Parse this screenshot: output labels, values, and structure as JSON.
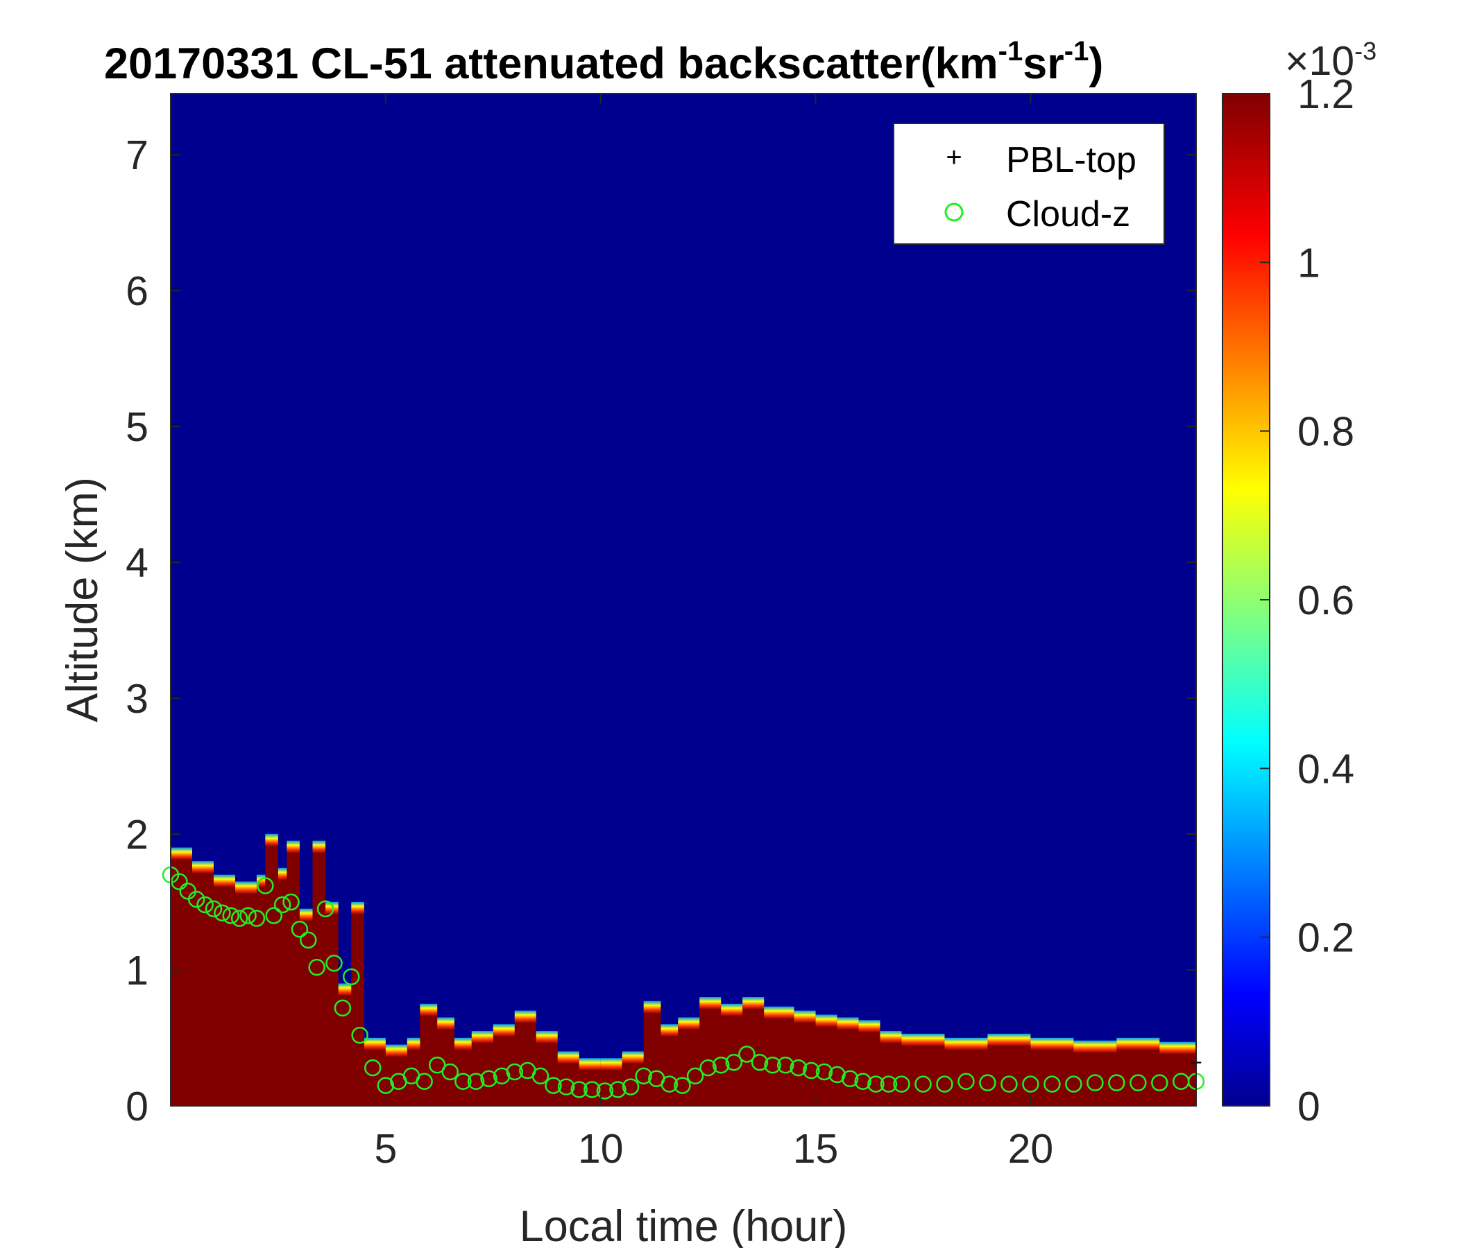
{
  "chart_data": {
    "type": "heatmap",
    "title": "20170331  CL-51 attenuated backscatter(km",
    "title_sup1": "-1",
    "title_mid": "sr",
    "title_sup2": "-1",
    "title_end": ")",
    "xlabel": "Local time (hour)",
    "ylabel": "Altitude (km)",
    "xlim": [
      0,
      23.85
    ],
    "ylim": [
      0,
      7.45
    ],
    "x_ticks": [
      "5",
      "10",
      "15",
      "20"
    ],
    "x_tick_values": [
      5,
      10,
      15,
      20
    ],
    "y_ticks": [
      "0",
      "1",
      "2",
      "3",
      "4",
      "5",
      "6",
      "7"
    ],
    "y_tick_values": [
      0,
      1,
      2,
      3,
      4,
      5,
      6,
      7
    ],
    "colorbar": {
      "colormap": "jet",
      "range": [
        0,
        0.0012
      ],
      "ticks": [
        "0",
        "0.2",
        "0.4",
        "0.6",
        "0.8",
        "1",
        "1.2"
      ],
      "tick_values": [
        0,
        0.2,
        0.4,
        0.6,
        0.8,
        1.0,
        1.2
      ],
      "multiplier": "×10",
      "multiplier_exp": "-3"
    },
    "legend": {
      "position": "top-right",
      "entries": [
        {
          "name": "PBL-top",
          "marker": "+",
          "color": "#000000"
        },
        {
          "name": "Cloud-z",
          "marker": "o",
          "color": "#22ee22"
        }
      ]
    },
    "saturated_layer_top": {
      "x": [
        0,
        0.5,
        1,
        1.5,
        2,
        2.2,
        2.5,
        2.7,
        3,
        3.3,
        3.6,
        3.9,
        4.2,
        4.5,
        5,
        5.5,
        5.8,
        6.2,
        6.6,
        7,
        7.5,
        8,
        8.5,
        9,
        9.5,
        10,
        10.5,
        11,
        11.4,
        11.8,
        12.3,
        12.8,
        13.3,
        13.8,
        14.5,
        15,
        15.5,
        16,
        16.5,
        17,
        18,
        19,
        20,
        21,
        22,
        23,
        23.85
      ],
      "y": [
        1.85,
        1.75,
        1.65,
        1.6,
        1.65,
        1.95,
        1.7,
        1.9,
        1.4,
        1.9,
        1.45,
        0.85,
        1.45,
        0.45,
        0.4,
        0.45,
        0.7,
        0.6,
        0.45,
        0.5,
        0.55,
        0.65,
        0.5,
        0.35,
        0.3,
        0.3,
        0.35,
        0.72,
        0.55,
        0.6,
        0.75,
        0.7,
        0.75,
        0.68,
        0.65,
        0.62,
        0.6,
        0.58,
        0.5,
        0.48,
        0.45,
        0.48,
        0.45,
        0.43,
        0.45,
        0.42,
        0.42
      ]
    },
    "cloud_z": {
      "x": [
        0,
        0.2,
        0.4,
        0.6,
        0.8,
        1,
        1.2,
        1.4,
        1.6,
        1.8,
        2,
        2.2,
        2.4,
        2.6,
        2.8,
        3,
        3.2,
        3.4,
        3.6,
        3.8,
        4,
        4.2,
        4.4,
        4.7,
        5,
        5.3,
        5.6,
        5.9,
        6.2,
        6.5,
        6.8,
        7.1,
        7.4,
        7.7,
        8,
        8.3,
        8.6,
        8.9,
        9.2,
        9.5,
        9.8,
        10.1,
        10.4,
        10.7,
        11,
        11.3,
        11.6,
        11.9,
        12.2,
        12.5,
        12.8,
        13.1,
        13.4,
        13.7,
        14,
        14.3,
        14.6,
        14.9,
        15.2,
        15.5,
        15.8,
        16.1,
        16.4,
        16.7,
        17,
        17.5,
        18,
        18.5,
        19,
        19.5,
        20,
        20.5,
        21,
        21.5,
        22,
        22.5,
        23,
        23.5,
        23.85
      ],
      "y": [
        1.7,
        1.65,
        1.58,
        1.52,
        1.48,
        1.45,
        1.42,
        1.4,
        1.38,
        1.4,
        1.38,
        1.62,
        1.4,
        1.48,
        1.5,
        1.3,
        1.22,
        1.02,
        1.45,
        1.05,
        0.72,
        0.95,
        0.52,
        0.28,
        0.15,
        0.18,
        0.22,
        0.18,
        0.3,
        0.25,
        0.18,
        0.18,
        0.2,
        0.22,
        0.25,
        0.26,
        0.22,
        0.15,
        0.14,
        0.12,
        0.12,
        0.11,
        0.12,
        0.14,
        0.22,
        0.2,
        0.16,
        0.15,
        0.22,
        0.28,
        0.3,
        0.32,
        0.38,
        0.32,
        0.3,
        0.3,
        0.28,
        0.26,
        0.25,
        0.23,
        0.2,
        0.18,
        0.16,
        0.16,
        0.16,
        0.16,
        0.16,
        0.18,
        0.17,
        0.16,
        0.16,
        0.16,
        0.16,
        0.17,
        0.17,
        0.17,
        0.17,
        0.18,
        0.18
      ]
    },
    "pbl_top": {
      "x": [
        23.85
      ],
      "y": [
        0.32
      ]
    }
  }
}
